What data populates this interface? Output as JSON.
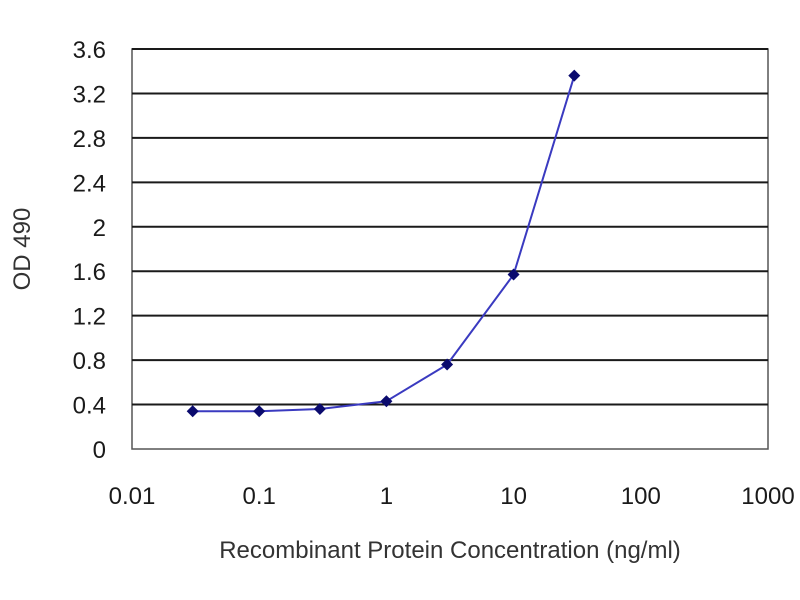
{
  "chart_data": {
    "type": "line",
    "xlabel": "Recombinant Protein Concentration (ng/ml)",
    "ylabel": "OD 490",
    "x_scale": "log",
    "xlim": [
      0.01,
      1000
    ],
    "ylim": [
      0,
      3.6
    ],
    "x_ticks": [
      0.01,
      0.1,
      1,
      10,
      100,
      1000
    ],
    "x_tick_labels": [
      "0.01",
      "0.1",
      "1",
      "10",
      "100",
      "1000"
    ],
    "y_ticks": [
      0,
      0.4,
      0.8,
      1.2,
      1.6,
      2,
      2.4,
      2.8,
      3.2,
      3.6
    ],
    "y_tick_labels": [
      "0",
      "0.4",
      "0.8",
      "1.2",
      "1.6",
      "2",
      "2.4",
      "2.8",
      "3.2",
      "3.6"
    ],
    "grid": "horizontal",
    "legend": "none",
    "series": [
      {
        "x": [
          0.03,
          0.1,
          0.3,
          1,
          3,
          10,
          30
        ],
        "y": [
          0.34,
          0.34,
          0.36,
          0.43,
          0.76,
          1.57,
          3.36
        ]
      }
    ],
    "colors": {
      "line": "#3a3ac0",
      "marker": "#0b0b6e",
      "grid": "#1a1a1a",
      "frame": "#555555"
    }
  }
}
